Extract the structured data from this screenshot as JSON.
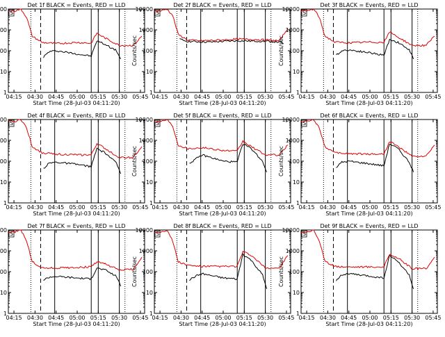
{
  "figure": {
    "xlabel_template": "Start Time (28-Jul-03 04:11:20)"
  },
  "chart_data": {
    "type": "line",
    "layout": "3x3 grid",
    "start_time": "28-Jul-03 04:11:20",
    "xlabel": "Start Time (28-Jul-03 04:11:20)",
    "ylabel": "Counts/sec",
    "ylim": [
      1,
      10000
    ],
    "yscale": "log",
    "x_ticks": [
      "04:15",
      "04:30",
      "04:45",
      "05:00",
      "05:15",
      "05:30",
      "05:45"
    ],
    "y_ticks": [
      "1",
      "10",
      "100",
      "1000",
      "10000"
    ],
    "vertical_markers": {
      "dotted": [
        "04:27",
        "05:34"
      ],
      "dashed": [
        "04:34"
      ],
      "solid": [
        "04:44",
        "05:10",
        "05:15",
        "05:30"
      ]
    },
    "panels": [
      {
        "title": "Det 1f BLACK = Events, RED = LLD",
        "corner_label": "S",
        "series": [
          {
            "legend": "BLACK = Events",
            "color": "#000000",
            "x": [
              "04:36",
              "04:40",
              "04:45",
              "05:00",
              "05:10",
              "05:14",
              "05:20",
              "05:28",
              "05:31"
            ],
            "values": [
              50,
              90,
              100,
              70,
              55,
              300,
              200,
              100,
              40
            ]
          },
          {
            "legend": "RED = LLD",
            "color": "#dd0000",
            "x": [
              "04:11",
              "04:15",
              "04:20",
              "04:24",
              "04:28",
              "04:35",
              "04:45",
              "05:00",
              "05:10",
              "05:14",
              "05:20",
              "05:30",
              "05:40",
              "05:46"
            ],
            "values": [
              8000,
              8000,
              10000,
              4000,
              500,
              250,
              220,
              250,
              230,
              700,
              400,
              180,
              180,
              500
            ]
          }
        ]
      },
      {
        "title": "Det 2f BLACK = Events, RED = LLD",
        "corner_label": "S",
        "series": [
          {
            "legend": "BLACK = Events",
            "color": "#000000",
            "x": [
              "04:29",
              "04:35",
              "04:50",
              "05:00",
              "05:10",
              "05:20",
              "05:30",
              "05:40",
              "05:43"
            ],
            "values": [
              350,
              280,
              260,
              280,
              300,
              290,
              290,
              260,
              220
            ]
          },
          {
            "legend": "RED = LLD",
            "color": "#dd0000",
            "x": [
              "04:11",
              "04:15",
              "04:20",
              "04:24",
              "04:28",
              "04:35",
              "04:45",
              "05:00",
              "05:10",
              "05:20",
              "05:30",
              "05:40",
              "05:46"
            ],
            "values": [
              8000,
              8000,
              10000,
              5000,
              600,
              320,
              300,
              330,
              360,
              350,
              330,
              300,
              1200
            ]
          }
        ]
      },
      {
        "title": "Det 3f BLACK = Events, RED = LLD",
        "corner_label": "S",
        "series": [
          {
            "legend": "BLACK = Events",
            "color": "#000000",
            "x": [
              "04:36",
              "04:40",
              "04:45",
              "05:00",
              "05:10",
              "05:14",
              "05:20",
              "05:28",
              "05:31"
            ],
            "values": [
              60,
              100,
              110,
              80,
              60,
              350,
              250,
              110,
              40
            ]
          },
          {
            "legend": "RED = LLD",
            "color": "#dd0000",
            "x": [
              "04:11",
              "04:15",
              "04:20",
              "04:24",
              "04:28",
              "04:35",
              "04:45",
              "05:00",
              "05:10",
              "05:14",
              "05:20",
              "05:30",
              "05:40",
              "05:46"
            ],
            "values": [
              8000,
              8000,
              10000,
              4000,
              500,
              260,
              240,
              260,
              250,
              800,
              450,
              180,
              180,
              500
            ]
          }
        ]
      },
      {
        "title": "Det 4f BLACK = Events, RED = LLD",
        "corner_label": "S",
        "series": [
          {
            "legend": "BLACK = Events",
            "color": "#000000",
            "x": [
              "04:36",
              "04:40",
              "04:45",
              "05:00",
              "05:10",
              "05:14",
              "05:20",
              "05:28",
              "05:31"
            ],
            "values": [
              45,
              80,
              90,
              70,
              55,
              400,
              250,
              80,
              25
            ]
          },
          {
            "legend": "RED = LLD",
            "color": "#dd0000",
            "x": [
              "04:11",
              "04:15",
              "04:20",
              "04:24",
              "04:28",
              "04:35",
              "04:45",
              "05:00",
              "05:10",
              "05:14",
              "05:20",
              "05:30",
              "05:40",
              "05:46"
            ],
            "values": [
              8000,
              8000,
              10000,
              4000,
              500,
              250,
              220,
              200,
              200,
              700,
              400,
              150,
              150,
              500
            ]
          }
        ]
      },
      {
        "title": "Det 5f BLACK = Events, RED = LLD",
        "corner_label": "S",
        "series": [
          {
            "legend": "BLACK = Events",
            "color": "#000000",
            "x": [
              "04:36",
              "04:40",
              "04:45",
              "05:00",
              "05:10",
              "05:14",
              "05:20",
              "05:28",
              "05:31"
            ],
            "values": [
              80,
              120,
              200,
              100,
              90,
              700,
              400,
              100,
              30
            ]
          },
          {
            "legend": "RED = LLD",
            "color": "#dd0000",
            "x": [
              "04:11",
              "04:15",
              "04:20",
              "04:24",
              "04:28",
              "04:35",
              "04:45",
              "05:00",
              "05:10",
              "05:14",
              "05:20",
              "05:30",
              "05:40",
              "05:46"
            ],
            "values": [
              8000,
              8000,
              10000,
              5000,
              600,
              400,
              450,
              330,
              300,
              900,
              500,
              200,
              200,
              600
            ]
          }
        ]
      },
      {
        "title": "Det 6f BLACK = Events, RED = LLD",
        "corner_label": "S",
        "series": [
          {
            "legend": "BLACK = Events",
            "color": "#000000",
            "x": [
              "04:36",
              "04:40",
              "04:45",
              "05:00",
              "05:10",
              "05:14",
              "05:20",
              "05:28",
              "05:31"
            ],
            "values": [
              50,
              90,
              100,
              75,
              60,
              700,
              400,
              90,
              30
            ]
          },
          {
            "legend": "RED = LLD",
            "color": "#dd0000",
            "x": [
              "04:11",
              "04:15",
              "04:20",
              "04:24",
              "04:28",
              "04:35",
              "04:45",
              "05:00",
              "05:10",
              "05:14",
              "05:20",
              "05:30",
              "05:40",
              "05:46"
            ],
            "values": [
              8000,
              8000,
              10000,
              4000,
              500,
              250,
              230,
              220,
              220,
              900,
              500,
              170,
              170,
              600
            ]
          }
        ]
      },
      {
        "title": "Det 7f BLACK = Events, RED = LLD",
        "corner_label": "S",
        "series": [
          {
            "legend": "BLACK = Events",
            "color": "#000000",
            "x": [
              "04:36",
              "04:40",
              "04:45",
              "05:00",
              "05:10",
              "05:14",
              "05:20",
              "05:28",
              "05:31"
            ],
            "values": [
              40,
              55,
              60,
              50,
              45,
              150,
              120,
              60,
              20
            ]
          },
          {
            "legend": "RED = LLD",
            "color": "#dd0000",
            "x": [
              "04:11",
              "04:15",
              "04:20",
              "04:24",
              "04:28",
              "04:35",
              "04:45",
              "05:00",
              "05:10",
              "05:14",
              "05:20",
              "05:30",
              "05:40",
              "05:46"
            ],
            "values": [
              8000,
              8000,
              10000,
              3000,
              300,
              150,
              150,
              160,
              170,
              300,
              230,
              120,
              130,
              500
            ]
          }
        ]
      },
      {
        "title": "Det 8f BLACK = Events, RED = LLD",
        "corner_label": "S",
        "series": [
          {
            "legend": "BLACK = Events",
            "color": "#000000",
            "x": [
              "04:36",
              "04:40",
              "04:45",
              "05:00",
              "05:10",
              "05:14",
              "05:20",
              "05:28",
              "05:31"
            ],
            "values": [
              40,
              60,
              80,
              50,
              45,
              700,
              350,
              70,
              15
            ]
          },
          {
            "legend": "RED = LLD",
            "color": "#dd0000",
            "x": [
              "04:11",
              "04:15",
              "04:20",
              "04:24",
              "04:28",
              "04:35",
              "04:45",
              "05:00",
              "05:10",
              "05:14",
              "05:20",
              "05:30",
              "05:40",
              "05:46"
            ],
            "values": [
              8000,
              8000,
              10000,
              3000,
              300,
              200,
              180,
              180,
              180,
              900,
              600,
              150,
              150,
              600
            ]
          }
        ]
      },
      {
        "title": "Det 9f BLACK = Events, RED = LLD",
        "corner_label": "S",
        "series": [
          {
            "legend": "BLACK = Events",
            "color": "#000000",
            "x": [
              "04:36",
              "04:40",
              "04:45",
              "05:00",
              "05:10",
              "05:14",
              "05:20",
              "05:28",
              "05:31"
            ],
            "values": [
              40,
              70,
              80,
              60,
              50,
              600,
              300,
              70,
              15
            ]
          },
          {
            "legend": "RED = LLD",
            "color": "#dd0000",
            "x": [
              "04:11",
              "04:15",
              "04:20",
              "04:24",
              "04:28",
              "04:35",
              "04:45",
              "05:00",
              "05:10",
              "05:14",
              "05:20",
              "05:30",
              "05:40",
              "05:46"
            ],
            "values": [
              8000,
              8000,
              10000,
              3000,
              300,
              180,
              170,
              170,
              170,
              700,
              450,
              140,
              140,
              500
            ]
          }
        ]
      }
    ]
  }
}
